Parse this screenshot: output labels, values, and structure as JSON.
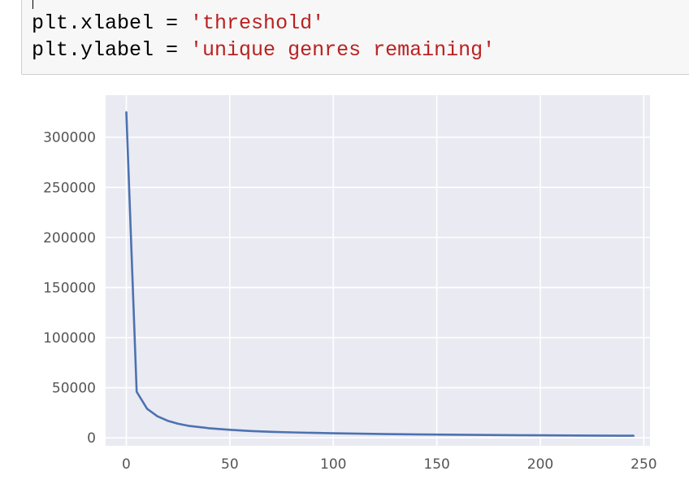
{
  "code_cell": {
    "lines": [
      {
        "target": "plt.xlabel",
        "op": " = ",
        "value": "'threshold'"
      },
      {
        "target": "plt.ylabel",
        "op": " = ",
        "value": "'unique genres remaining'"
      }
    ]
  },
  "chart_data": {
    "type": "line",
    "title": "",
    "xlabel": "",
    "ylabel": "",
    "xlim": [
      -10,
      253
    ],
    "ylim": [
      -8000,
      342000
    ],
    "x_ticks": [
      0,
      50,
      100,
      150,
      200,
      250
    ],
    "y_ticks": [
      0,
      50000,
      100000,
      150000,
      200000,
      250000,
      300000
    ],
    "x_tick_labels": [
      "0",
      "50",
      "100",
      "150",
      "200",
      "250"
    ],
    "y_tick_labels": [
      "0",
      "50000",
      "100000",
      "150000",
      "200000",
      "250000",
      "300000"
    ],
    "grid": true,
    "background": "#eaeaf2",
    "line_color": "#4c72b0",
    "series": [
      {
        "x": [
          0,
          5,
          10,
          15,
          20,
          25,
          30,
          40,
          50,
          60,
          70,
          80,
          100,
          125,
          150,
          175,
          200,
          225,
          245
        ],
        "y": [
          325000,
          46000,
          29000,
          21500,
          17000,
          14000,
          12000,
          9500,
          8000,
          6800,
          6000,
          5400,
          4500,
          3700,
          3200,
          2800,
          2500,
          2250,
          2100
        ]
      }
    ]
  }
}
